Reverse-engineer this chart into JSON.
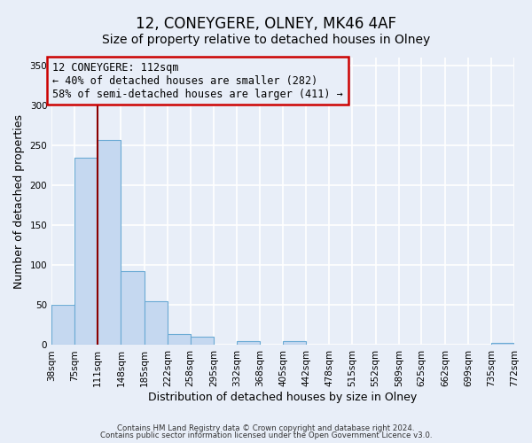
{
  "title": "12, CONEYGERE, OLNEY, MK46 4AF",
  "subtitle": "Size of property relative to detached houses in Olney",
  "xlabel": "Distribution of detached houses by size in Olney",
  "ylabel": "Number of detached properties",
  "footer_lines": [
    "Contains HM Land Registry data © Crown copyright and database right 2024.",
    "Contains public sector information licensed under the Open Government Licence v3.0."
  ],
  "bin_edges": [
    38,
    75,
    111,
    148,
    185,
    222,
    258,
    295,
    332,
    368,
    405,
    442,
    478,
    515,
    552,
    589,
    625,
    662,
    699,
    735,
    772
  ],
  "bin_labels": [
    "38sqm",
    "75sqm",
    "111sqm",
    "148sqm",
    "185sqm",
    "222sqm",
    "258sqm",
    "295sqm",
    "332sqm",
    "368sqm",
    "405sqm",
    "442sqm",
    "478sqm",
    "515sqm",
    "552sqm",
    "589sqm",
    "625sqm",
    "662sqm",
    "699sqm",
    "735sqm",
    "772sqm"
  ],
  "counts": [
    50,
    235,
    257,
    93,
    55,
    14,
    10,
    0,
    5,
    0,
    5,
    0,
    0,
    0,
    0,
    0,
    0,
    0,
    0,
    3,
    0
  ],
  "bar_color": "#c5d8f0",
  "bar_edge_color": "#6aaad4",
  "vline_x": 111,
  "vline_color": "darkred",
  "annotation_text": "12 CONEYGERE: 112sqm\n← 40% of detached houses are smaller (282)\n58% of semi-detached houses are larger (411) →",
  "annotation_box_color": "#cc0000",
  "annotation_text_color": "black",
  "annotation_fontsize": 8.5,
  "ylim": [
    0,
    360
  ],
  "yticks": [
    0,
    50,
    100,
    150,
    200,
    250,
    300,
    350
  ],
  "bg_color": "#e8eef8",
  "grid_color": "white",
  "title_fontsize": 12,
  "subtitle_fontsize": 10,
  "axis_label_fontsize": 9,
  "tick_fontsize": 7.5
}
